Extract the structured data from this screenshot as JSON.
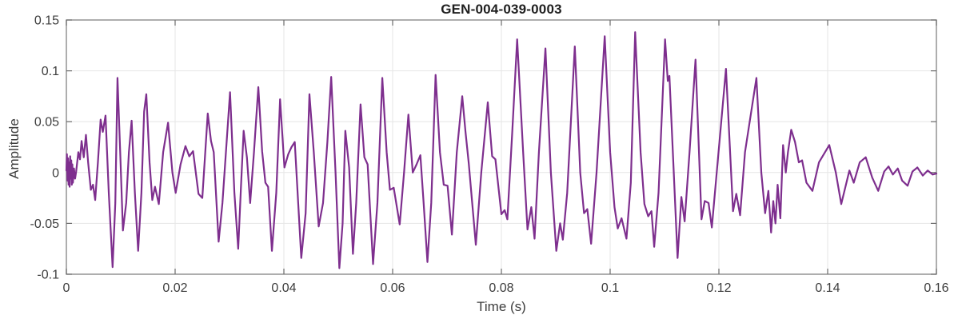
{
  "chart_data": {
    "type": "line",
    "title": "GEN-004-039-0003",
    "xlabel": "Time (s)",
    "ylabel": "Amplitude",
    "xlim": [
      0,
      0.16
    ],
    "ylim": [
      -0.1,
      0.15
    ],
    "x_ticks": [
      0,
      0.02,
      0.04,
      0.06,
      0.08,
      0.1,
      0.12,
      0.14,
      0.16
    ],
    "x_tick_labels": [
      "0",
      "0.02",
      "0.04",
      "0.06",
      "0.08",
      "0.1",
      "0.12",
      "0.14",
      "0.16"
    ],
    "y_ticks": [
      -0.1,
      -0.05,
      0,
      0.05,
      0.1,
      0.15
    ],
    "y_tick_labels": [
      "-0.1",
      "-0.05",
      "0",
      "0.05",
      "0.1",
      "0.15"
    ],
    "grid": true,
    "legend": "none",
    "colors": {
      "line": "#7E2F8E",
      "grid": "#e6e6e6",
      "axis_box": "#8c8c8c",
      "tick_mark": "#6b6b6b",
      "tick_text": "#3d3d3d"
    },
    "series": [
      {
        "name": "signal",
        "color": "#7E2F8E",
        "points": [
          [
            0.0,
            0.002
          ],
          [
            0.0001,
            0.018
          ],
          [
            0.0002,
            -0.008
          ],
          [
            0.0003,
            0.014
          ],
          [
            0.0004,
            -0.012
          ],
          [
            0.0005,
            0.01
          ],
          [
            0.0006,
            -0.014
          ],
          [
            0.0007,
            0.016
          ],
          [
            0.0008,
            -0.006
          ],
          [
            0.0009,
            0.012
          ],
          [
            0.001,
            -0.012
          ],
          [
            0.0011,
            0.008
          ],
          [
            0.0012,
            -0.01
          ],
          [
            0.0014,
            0.004
          ],
          [
            0.0016,
            -0.006
          ],
          [
            0.0018,
            0.001
          ],
          [
            0.0022,
            0.02
          ],
          [
            0.0025,
            0.013
          ],
          [
            0.0028,
            0.031
          ],
          [
            0.0032,
            0.015
          ],
          [
            0.0036,
            0.037
          ],
          [
            0.004,
            0.01
          ],
          [
            0.0045,
            -0.017
          ],
          [
            0.0049,
            -0.012
          ],
          [
            0.0053,
            -0.027
          ],
          [
            0.0058,
            0.01
          ],
          [
            0.0063,
            0.052
          ],
          [
            0.0067,
            0.04
          ],
          [
            0.0072,
            0.056
          ],
          [
            0.0078,
            -0.02
          ],
          [
            0.0085,
            -0.093
          ],
          [
            0.009,
            -0.03
          ],
          [
            0.0094,
            0.093
          ],
          [
            0.0099,
            0.02
          ],
          [
            0.0104,
            -0.057
          ],
          [
            0.011,
            -0.03
          ],
          [
            0.0115,
            0.02
          ],
          [
            0.012,
            0.051
          ],
          [
            0.0126,
            -0.02
          ],
          [
            0.0132,
            -0.077
          ],
          [
            0.0138,
            -0.02
          ],
          [
            0.0143,
            0.06
          ],
          [
            0.0147,
            0.077
          ],
          [
            0.0153,
            0.01
          ],
          [
            0.0158,
            -0.027
          ],
          [
            0.0163,
            -0.014
          ],
          [
            0.017,
            -0.031
          ],
          [
            0.0178,
            0.02
          ],
          [
            0.0187,
            0.049
          ],
          [
            0.0195,
            0.0
          ],
          [
            0.0201,
            -0.02
          ],
          [
            0.021,
            0.008
          ],
          [
            0.0219,
            0.026
          ],
          [
            0.0226,
            0.016
          ],
          [
            0.0233,
            0.021
          ],
          [
            0.0243,
            -0.021
          ],
          [
            0.025,
            -0.025
          ],
          [
            0.026,
            0.058
          ],
          [
            0.0266,
            0.031
          ],
          [
            0.0271,
            0.02
          ],
          [
            0.028,
            -0.068
          ],
          [
            0.0287,
            -0.03
          ],
          [
            0.0301,
            0.079
          ],
          [
            0.0309,
            -0.02
          ],
          [
            0.0316,
            -0.075
          ],
          [
            0.0321,
            -0.015
          ],
          [
            0.0326,
            0.041
          ],
          [
            0.0332,
            0.015
          ],
          [
            0.0338,
            -0.03
          ],
          [
            0.0345,
            0.02
          ],
          [
            0.0353,
            0.084
          ],
          [
            0.036,
            0.021
          ],
          [
            0.0366,
            -0.01
          ],
          [
            0.0371,
            -0.014
          ],
          [
            0.0378,
            -0.077
          ],
          [
            0.0386,
            -0.02
          ],
          [
            0.0393,
            0.072
          ],
          [
            0.0401,
            0.005
          ],
          [
            0.0408,
            0.018
          ],
          [
            0.0414,
            0.025
          ],
          [
            0.042,
            0.03
          ],
          [
            0.0432,
            -0.084
          ],
          [
            0.044,
            -0.04
          ],
          [
            0.0447,
            0.077
          ],
          [
            0.0455,
            0.02
          ],
          [
            0.0464,
            -0.053
          ],
          [
            0.0472,
            -0.03
          ],
          [
            0.048,
            0.03
          ],
          [
            0.0487,
            0.094
          ],
          [
            0.0495,
            0.0
          ],
          [
            0.0502,
            -0.094
          ],
          [
            0.0508,
            -0.05
          ],
          [
            0.0513,
            0.041
          ],
          [
            0.052,
            0.005
          ],
          [
            0.0527,
            -0.08
          ],
          [
            0.0533,
            -0.03
          ],
          [
            0.0541,
            0.067
          ],
          [
            0.0548,
            0.015
          ],
          [
            0.0554,
            0.008
          ],
          [
            0.0564,
            -0.09
          ],
          [
            0.0572,
            -0.03
          ],
          [
            0.0581,
            0.093
          ],
          [
            0.0589,
            0.02
          ],
          [
            0.0595,
            -0.017
          ],
          [
            0.0602,
            -0.015
          ],
          [
            0.0613,
            -0.051
          ],
          [
            0.0621,
            0.0
          ],
          [
            0.0629,
            0.057
          ],
          [
            0.0637,
            0.0
          ],
          [
            0.0644,
            0.008
          ],
          [
            0.0651,
            0.017
          ],
          [
            0.0657,
            -0.03
          ],
          [
            0.0664,
            -0.088
          ],
          [
            0.0671,
            -0.03
          ],
          [
            0.0679,
            0.096
          ],
          [
            0.0687,
            0.02
          ],
          [
            0.0694,
            -0.012
          ],
          [
            0.0701,
            -0.013
          ],
          [
            0.0709,
            -0.061
          ],
          [
            0.0718,
            0.02
          ],
          [
            0.0728,
            0.075
          ],
          [
            0.0734,
            0.04
          ],
          [
            0.074,
            0.009
          ],
          [
            0.0753,
            -0.071
          ],
          [
            0.0763,
            0.0
          ],
          [
            0.0775,
            0.069
          ],
          [
            0.0783,
            0.016
          ],
          [
            0.0789,
            0.013
          ],
          [
            0.08,
            -0.041
          ],
          [
            0.0806,
            -0.037
          ],
          [
            0.0811,
            -0.046
          ],
          [
            0.082,
            0.04
          ],
          [
            0.0829,
            0.131
          ],
          [
            0.084,
            0.02
          ],
          [
            0.0848,
            -0.056
          ],
          [
            0.0855,
            -0.034
          ],
          [
            0.0861,
            -0.065
          ],
          [
            0.0869,
            0.02
          ],
          [
            0.0881,
            0.122
          ],
          [
            0.0891,
            0.0
          ],
          [
            0.0901,
            -0.077
          ],
          [
            0.0908,
            -0.05
          ],
          [
            0.0913,
            -0.066
          ],
          [
            0.0921,
            -0.02
          ],
          [
            0.0935,
            0.124
          ],
          [
            0.0945,
            0.0
          ],
          [
            0.0952,
            -0.04
          ],
          [
            0.0958,
            -0.036
          ],
          [
            0.0965,
            -0.07
          ],
          [
            0.0975,
            0.0
          ],
          [
            0.099,
            0.134
          ],
          [
            0.1,
            0.02
          ],
          [
            0.1008,
            -0.034
          ],
          [
            0.1014,
            -0.055
          ],
          [
            0.1021,
            -0.045
          ],
          [
            0.103,
            -0.065
          ],
          [
            0.1038,
            -0.01
          ],
          [
            0.1046,
            0.138
          ],
          [
            0.1056,
            0.02
          ],
          [
            0.1063,
            -0.031
          ],
          [
            0.107,
            -0.043
          ],
          [
            0.1076,
            -0.038
          ],
          [
            0.1081,
            -0.073
          ],
          [
            0.1089,
            -0.02
          ],
          [
            0.1101,
            0.131
          ],
          [
            0.1106,
            0.09
          ],
          [
            0.1109,
            0.095
          ],
          [
            0.1117,
            0.0
          ],
          [
            0.1124,
            -0.084
          ],
          [
            0.1131,
            -0.024
          ],
          [
            0.1137,
            -0.048
          ],
          [
            0.1146,
            0.02
          ],
          [
            0.1157,
            0.111
          ],
          [
            0.1168,
            -0.046
          ],
          [
            0.1174,
            -0.028
          ],
          [
            0.1181,
            -0.03
          ],
          [
            0.1187,
            -0.054
          ],
          [
            0.1196,
            0.0
          ],
          [
            0.1213,
            0.102
          ],
          [
            0.1226,
            -0.038
          ],
          [
            0.1232,
            -0.021
          ],
          [
            0.1239,
            -0.042
          ],
          [
            0.1248,
            0.02
          ],
          [
            0.1269,
            0.093
          ],
          [
            0.1278,
            0.0
          ],
          [
            0.1285,
            -0.04
          ],
          [
            0.1291,
            -0.018
          ],
          [
            0.1296,
            -0.059
          ],
          [
            0.13,
            -0.028
          ],
          [
            0.1304,
            -0.05
          ],
          [
            0.1308,
            -0.012
          ],
          [
            0.1313,
            -0.045
          ],
          [
            0.1318,
            0.027
          ],
          [
            0.1323,
            0.0
          ],
          [
            0.1327,
            0.02
          ],
          [
            0.1333,
            0.042
          ],
          [
            0.134,
            0.03
          ],
          [
            0.1347,
            0.01
          ],
          [
            0.1353,
            0.012
          ],
          [
            0.1361,
            -0.01
          ],
          [
            0.1372,
            -0.018
          ],
          [
            0.1384,
            0.01
          ],
          [
            0.1403,
            0.027
          ],
          [
            0.1415,
            0.0
          ],
          [
            0.1425,
            -0.031
          ],
          [
            0.144,
            0.002
          ],
          [
            0.1448,
            -0.01
          ],
          [
            0.1459,
            0.01
          ],
          [
            0.147,
            0.015
          ],
          [
            0.1482,
            -0.005
          ],
          [
            0.1493,
            -0.018
          ],
          [
            0.1504,
            0.001
          ],
          [
            0.1512,
            0.006
          ],
          [
            0.152,
            -0.002
          ],
          [
            0.1529,
            0.004
          ],
          [
            0.1537,
            -0.008
          ],
          [
            0.1547,
            -0.013
          ],
          [
            0.1556,
            0.001
          ],
          [
            0.1565,
            0.005
          ],
          [
            0.1575,
            -0.003
          ],
          [
            0.1584,
            0.002
          ],
          [
            0.1593,
            -0.002
          ],
          [
            0.16,
            -0.001
          ]
        ]
      }
    ]
  }
}
